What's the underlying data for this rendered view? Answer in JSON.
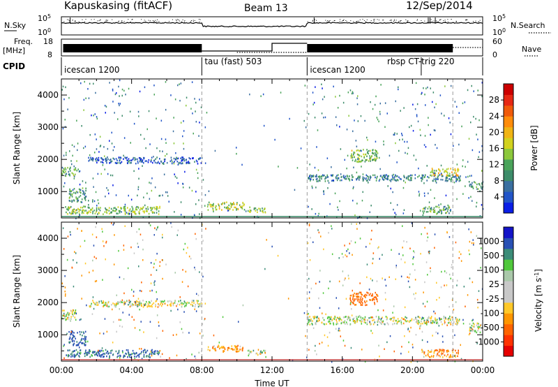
{
  "header": {
    "station": "Kapuskasing (fitACF)",
    "beam": "Beam 13",
    "date": "12/Sep/2014"
  },
  "noise_panel": {
    "left_label": "N.Sky",
    "left_ticks": [
      "10^5",
      "10^0"
    ],
    "right_label": "N.Search",
    "right_ticks": [
      "10^5",
      "10^0"
    ]
  },
  "freq_panel": {
    "left_label_line1": "Freq.",
    "left_label_line2": "[MHz]",
    "left_ticks": [
      "18",
      "8"
    ],
    "right_label": "Nave",
    "right_ticks": [
      "60",
      "0"
    ]
  },
  "cpid": {
    "label": "CPID",
    "segments": [
      {
        "start": 0,
        "end": 8,
        "text": "icescan 1200"
      },
      {
        "start": 8,
        "end": 14,
        "text": "tau (fast) 503"
      },
      {
        "start": 14,
        "end": 20.5,
        "text": "icescan 1200"
      },
      {
        "start": 20.5,
        "end": 24,
        "text": "rbsp CT-trig 220"
      }
    ]
  },
  "chart_data": [
    {
      "type": "heatmap",
      "title": "",
      "parameter": "Power",
      "ylabel": "Slant Range [km]",
      "xlabel": "",
      "xlim": [
        0,
        24
      ],
      "ylim": [
        180,
        4500
      ],
      "y_ticks": [
        1000,
        2000,
        3000,
        4000
      ],
      "colorbar": {
        "label": "Power [dB]",
        "range": [
          0,
          32
        ],
        "tick_values": [
          4,
          8,
          12,
          16,
          20,
          24,
          28
        ],
        "tick_labels": [
          "4",
          "8",
          "12",
          "16",
          "20",
          "24",
          "28"
        ],
        "colors": [
          "#0a1ee6",
          "#2255c8",
          "#3a6fa0",
          "#3d8c6a",
          "#4aa35a",
          "#8cc83c",
          "#d2d21e",
          "#f0b414",
          "#ff8c0a",
          "#f05a0a",
          "#e62814",
          "#cc0000"
        ]
      },
      "echo_regions": [
        {
          "t0": 0.0,
          "t1": 0.8,
          "r0": 1450,
          "r1": 1750,
          "value": 12
        },
        {
          "t0": 0.4,
          "t1": 1.4,
          "r0": 650,
          "r1": 1100,
          "value": 10
        },
        {
          "t0": 0.2,
          "t1": 5.6,
          "r0": 280,
          "r1": 520,
          "value": 14
        },
        {
          "t0": 1.5,
          "t1": 8.0,
          "r0": 1850,
          "r1": 2050,
          "value": 5
        },
        {
          "t0": 8.3,
          "t1": 10.4,
          "r0": 400,
          "r1": 650,
          "value": 16
        },
        {
          "t0": 10.6,
          "t1": 11.6,
          "r0": 330,
          "r1": 500,
          "value": 14
        },
        {
          "t0": 14.0,
          "t1": 22.7,
          "r0": 1300,
          "r1": 1500,
          "value": 8
        },
        {
          "t0": 16.4,
          "t1": 18.0,
          "r0": 1900,
          "r1": 2300,
          "value": 14
        },
        {
          "t0": 21.0,
          "t1": 22.6,
          "r0": 1450,
          "r1": 1700,
          "value": 18
        },
        {
          "t0": 20.5,
          "t1": 22.2,
          "r0": 300,
          "r1": 520,
          "value": 12
        },
        {
          "t0": 23.2,
          "t1": 24.0,
          "r0": 1050,
          "r1": 1300,
          "value": 10
        }
      ]
    },
    {
      "type": "heatmap",
      "title": "",
      "parameter": "Velocity",
      "ylabel": "Slant Range [km]",
      "xlabel": "Time UT",
      "xlim": [
        0,
        24
      ],
      "ylim": [
        180,
        4500
      ],
      "x_ticks": [
        0,
        4,
        8,
        12,
        16,
        20,
        24
      ],
      "x_tick_labels": [
        "00:00",
        "04:00",
        "08:00",
        "12:00",
        "16:00",
        "20:00",
        "00:00"
      ],
      "y_ticks": [
        1000,
        2000,
        3000,
        4000
      ],
      "colorbar": {
        "label": "Velocity [m s^-1]",
        "tick_labels": [
          "1000",
          "500",
          "100",
          "25",
          "-25",
          "-100",
          "-500",
          "-1000"
        ],
        "colors": [
          "#1414c8",
          "#2850b4",
          "#3c8c78",
          "#50c83c",
          "#aac8aa",
          "#c8c8c8",
          "#c8c8c8",
          "#ffc828",
          "#ff9600",
          "#ff6400",
          "#ff3200",
          "#e60000"
        ]
      },
      "echo_regions": [
        {
          "t0": 0.0,
          "t1": 0.8,
          "r0": 1400,
          "r1": 1750,
          "value": 0
        },
        {
          "t0": 0.4,
          "t1": 1.4,
          "r0": 650,
          "r1": 1100,
          "value": 150
        },
        {
          "t0": 0.2,
          "t1": 5.6,
          "r0": 280,
          "r1": 520,
          "value": 120
        },
        {
          "t0": 1.5,
          "t1": 8.0,
          "r0": 1850,
          "r1": 2050,
          "value": 0
        },
        {
          "t0": 8.3,
          "t1": 10.4,
          "r0": 450,
          "r1": 650,
          "value": -80
        },
        {
          "t0": 10.6,
          "t1": 11.6,
          "r0": 330,
          "r1": 500,
          "value": 0
        },
        {
          "t0": 14.0,
          "t1": 22.7,
          "r0": 1300,
          "r1": 1550,
          "value": 0
        },
        {
          "t0": 16.4,
          "t1": 18.0,
          "r0": 1900,
          "r1": 2300,
          "value": -150
        },
        {
          "t0": 20.5,
          "t1": 22.6,
          "r0": 280,
          "r1": 520,
          "value": -90
        },
        {
          "t0": 23.2,
          "t1": 24.0,
          "r0": 1050,
          "r1": 1350,
          "value": 0
        }
      ]
    }
  ]
}
